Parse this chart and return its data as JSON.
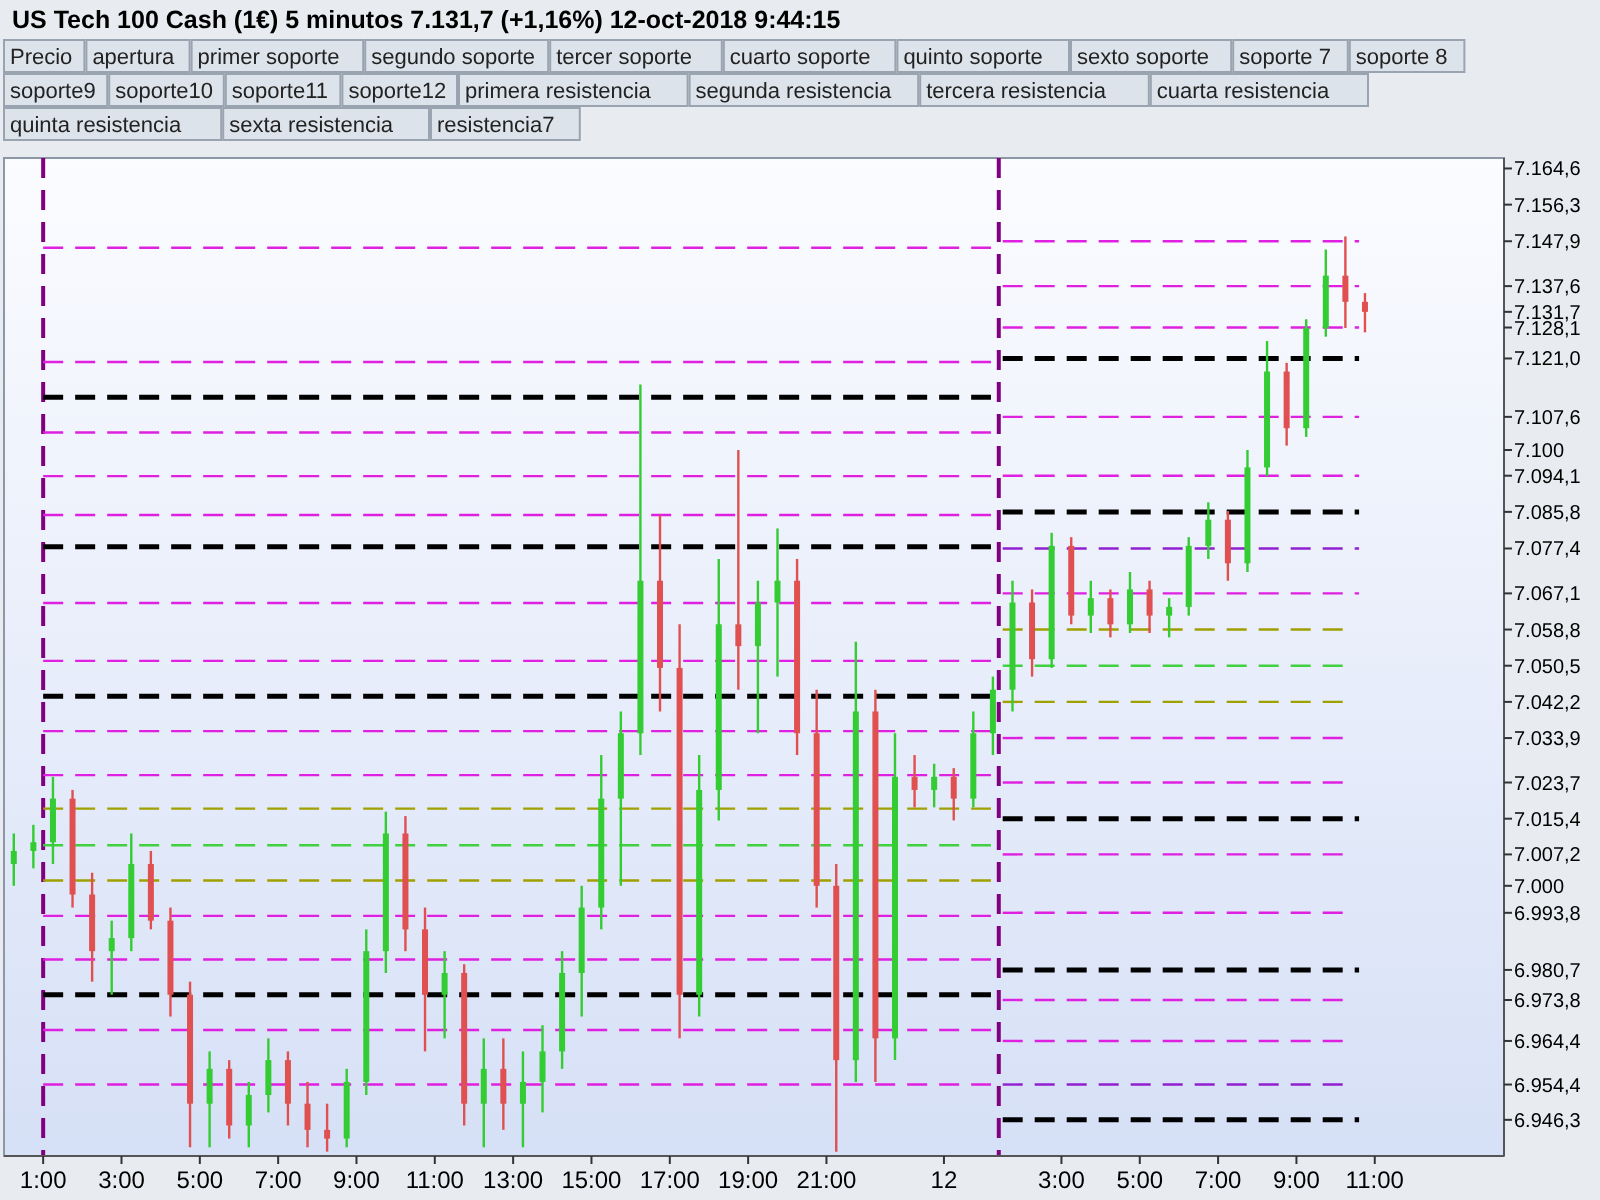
{
  "chart_data": {
    "type": "candlestick",
    "title": "US Tech 100 Cash (1€)   5 minutos   7.131,7 (+1,16%)   12-oct-2018 9:44:15",
    "annotations": [
      "Precio",
      "apertura",
      "primer soporte",
      "segundo soporte",
      "tercer soporte",
      "cuarto soporte",
      "quinto soporte",
      "sexto soporte",
      "soporte 7",
      "soporte 8",
      "soporte9",
      "soporte10",
      "soporte11",
      "soporte12",
      "primera resistencia",
      "segunda resistencia",
      "tercera resistencia",
      "cuarta resistencia",
      "quinta resistencia",
      "sexta resistencia",
      "resistencia7"
    ],
    "x": [
      "2018-10-11T00:15",
      "2018-10-11T00:45",
      "2018-10-11T01:15",
      "2018-10-11T01:45",
      "2018-10-11T02:15",
      "2018-10-11T02:45",
      "2018-10-11T03:15",
      "2018-10-11T03:45",
      "2018-10-11T04:15",
      "2018-10-11T04:45",
      "2018-10-11T05:15",
      "2018-10-11T05:45",
      "2018-10-11T06:15",
      "2018-10-11T06:45",
      "2018-10-11T07:15",
      "2018-10-11T07:45",
      "2018-10-11T08:15",
      "2018-10-11T08:45",
      "2018-10-11T09:15",
      "2018-10-11T09:45",
      "2018-10-11T10:15",
      "2018-10-11T10:45",
      "2018-10-11T11:15",
      "2018-10-11T11:45",
      "2018-10-11T12:15",
      "2018-10-11T12:45",
      "2018-10-11T13:15",
      "2018-10-11T13:45",
      "2018-10-11T14:15",
      "2018-10-11T14:45",
      "2018-10-11T15:15",
      "2018-10-11T15:45",
      "2018-10-11T16:15",
      "2018-10-11T16:45",
      "2018-10-11T17:15",
      "2018-10-11T17:45",
      "2018-10-11T18:15",
      "2018-10-11T18:45",
      "2018-10-11T19:15",
      "2018-10-11T19:45",
      "2018-10-11T20:15",
      "2018-10-11T20:45",
      "2018-10-11T21:15",
      "2018-10-11T21:45",
      "2018-10-11T22:15",
      "2018-10-11T22:45",
      "2018-10-11T23:15",
      "2018-10-11T23:45",
      "2018-10-12T00:15",
      "2018-10-12T00:45",
      "2018-10-12T01:15",
      "2018-10-12T01:45",
      "2018-10-12T02:15",
      "2018-10-12T02:45",
      "2018-10-12T03:15",
      "2018-10-12T03:45",
      "2018-10-12T04:15",
      "2018-10-12T04:45",
      "2018-10-12T05:15",
      "2018-10-12T05:45",
      "2018-10-12T06:15",
      "2018-10-12T06:45",
      "2018-10-12T07:15",
      "2018-10-12T07:45",
      "2018-10-12T08:15",
      "2018-10-12T08:45",
      "2018-10-12T09:15",
      "2018-10-12T09:45",
      "2018-10-12T10:15",
      "2018-10-12T10:45"
    ],
    "ohlc": [
      [
        7005,
        7012,
        7000,
        7008
      ],
      [
        7008,
        7014,
        7004,
        7010
      ],
      [
        7010,
        7025,
        7005,
        7020
      ],
      [
        7020,
        7022,
        6995,
        6998
      ],
      [
        6998,
        7003,
        6978,
        6985
      ],
      [
        6985,
        6992,
        6975,
        6988
      ],
      [
        6988,
        7012,
        6985,
        7005
      ],
      [
        7005,
        7008,
        6990,
        6992
      ],
      [
        6992,
        6995,
        6970,
        6975
      ],
      [
        6975,
        6978,
        6940,
        6950
      ],
      [
        6950,
        6962,
        6940,
        6958
      ],
      [
        6958,
        6960,
        6942,
        6945
      ],
      [
        6945,
        6955,
        6940,
        6952
      ],
      [
        6952,
        6965,
        6948,
        6960
      ],
      [
        6960,
        6962,
        6945,
        6950
      ],
      [
        6950,
        6955,
        6940,
        6944
      ],
      [
        6944,
        6950,
        6939,
        6942
      ],
      [
        6942,
        6958,
        6940,
        6955
      ],
      [
        6955,
        6990,
        6952,
        6985
      ],
      [
        6985,
        7017,
        6980,
        7012
      ],
      [
        7012,
        7016,
        6985,
        6990
      ],
      [
        6990,
        6995,
        6962,
        6975
      ],
      [
        6975,
        6985,
        6965,
        6980
      ],
      [
        6980,
        6982,
        6945,
        6950
      ],
      [
        6950,
        6965,
        6940,
        6958
      ],
      [
        6958,
        6965,
        6944,
        6950
      ],
      [
        6950,
        6962,
        6940,
        6955
      ],
      [
        6955,
        6968,
        6948,
        6962
      ],
      [
        6962,
        6985,
        6958,
        6980
      ],
      [
        6980,
        7000,
        6970,
        6995
      ],
      [
        6995,
        7030,
        6990,
        7020
      ],
      [
        7020,
        7040,
        7000,
        7035
      ],
      [
        7035,
        7115,
        7030,
        7070
      ],
      [
        7070,
        7085,
        7040,
        7050
      ],
      [
        7050,
        7060,
        6965,
        6975
      ],
      [
        6975,
        7030,
        6970,
        7022
      ],
      [
        7022,
        7075,
        7015,
        7060
      ],
      [
        7060,
        7100,
        7045,
        7055
      ],
      [
        7055,
        7070,
        7035,
        7065
      ],
      [
        7065,
        7082,
        7048,
        7070
      ],
      [
        7070,
        7075,
        7030,
        7035
      ],
      [
        7035,
        7045,
        6995,
        7000
      ],
      [
        7000,
        7005,
        6939,
        6960
      ],
      [
        6960,
        7056,
        6955,
        7040
      ],
      [
        7040,
        7045,
        6955,
        6965
      ],
      [
        6965,
        7035,
        6960,
        7025
      ],
      [
        7025,
        7030,
        7018,
        7022
      ],
      [
        7022,
        7028,
        7018,
        7025
      ],
      [
        7025,
        7027,
        7015,
        7020
      ],
      [
        7020,
        7040,
        7018,
        7035
      ],
      [
        7035,
        7048,
        7030,
        7045
      ],
      [
        7045,
        7070,
        7040,
        7065
      ],
      [
        7065,
        7068,
        7048,
        7052
      ],
      [
        7052,
        7081,
        7050,
        7078
      ],
      [
        7078,
        7080,
        7060,
        7062
      ],
      [
        7062,
        7070,
        7058,
        7066
      ],
      [
        7066,
        7068,
        7057,
        7060
      ],
      [
        7060,
        7072,
        7058,
        7068
      ],
      [
        7068,
        7070,
        7058,
        7062
      ],
      [
        7062,
        7066,
        7057,
        7064
      ],
      [
        7064,
        7080,
        7062,
        7078
      ],
      [
        7078,
        7088,
        7075,
        7084
      ],
      [
        7084,
        7086,
        7070,
        7074
      ],
      [
        7074,
        7100,
        7072,
        7096
      ],
      [
        7096,
        7125,
        7094,
        7118
      ],
      [
        7118,
        7120,
        7101,
        7105
      ],
      [
        7105,
        7130,
        7103,
        7128
      ],
      [
        7128,
        7146,
        7126,
        7140
      ],
      [
        7140,
        7149,
        7128,
        7134
      ],
      [
        7134,
        7136,
        7127,
        7131.7
      ]
    ],
    "colors": [
      "#33cc33",
      "#33cc33",
      "#33cc33",
      "#e05050",
      "#e05050",
      "#33cc33",
      "#33cc33",
      "#e05050",
      "#e05050",
      "#e05050",
      "#33cc33",
      "#e05050",
      "#33cc33",
      "#33cc33",
      "#e05050",
      "#e05050",
      "#e05050",
      "#33cc33",
      "#33cc33",
      "#33cc33",
      "#e05050",
      "#e05050",
      "#33cc33",
      "#e05050",
      "#33cc33",
      "#e05050",
      "#33cc33",
      "#33cc33",
      "#33cc33",
      "#33cc33",
      "#33cc33",
      "#33cc33",
      "#33cc33",
      "#e05050",
      "#e05050",
      "#33cc33",
      "#33cc33",
      "#e05050",
      "#33cc33",
      "#33cc33",
      "#e05050",
      "#e05050",
      "#e05050",
      "#33cc33",
      "#e05050",
      "#33cc33",
      "#e05050",
      "#33cc33",
      "#e05050",
      "#33cc33",
      "#33cc33",
      "#33cc33",
      "#e05050",
      "#33cc33",
      "#e05050",
      "#33cc33",
      "#e05050",
      "#33cc33",
      "#e05050",
      "#33cc33",
      "#33cc33",
      "#33cc33",
      "#e05050",
      "#33cc33",
      "#33cc33",
      "#e05050",
      "#33cc33",
      "#33cc33",
      "#e05050",
      "#e05050"
    ],
    "series": [
      {
        "type": "line",
        "color": "#e020e0",
        "x": [
          "2018-10-11T01:00",
          "2018-10-12T01:12"
        ],
        "values": [
          7146.4,
          7146.4
        ]
      },
      {
        "type": "line",
        "color": "#e020e0",
        "x": [
          "2018-10-11T01:00",
          "2018-10-12T01:12"
        ],
        "values": [
          7120.2,
          7120.2
        ]
      },
      {
        "type": "line",
        "color": "#000000",
        "x": [
          "2018-10-11T01:00",
          "2018-10-12T01:12"
        ],
        "values": [
          7112.1,
          7112.1
        ]
      },
      {
        "type": "line",
        "color": "#e020e0",
        "x": [
          "2018-10-11T01:00",
          "2018-10-12T01:12"
        ],
        "values": [
          7104,
          7104
        ]
      },
      {
        "type": "line",
        "color": "#e020e0",
        "x": [
          "2018-10-11T01:00",
          "2018-10-12T01:12"
        ],
        "values": [
          7094,
          7094
        ]
      },
      {
        "type": "line",
        "color": "#e020e0",
        "x": [
          "2018-10-11T01:00",
          "2018-10-12T01:12"
        ],
        "values": [
          7085.1,
          7085.1
        ]
      },
      {
        "type": "line",
        "color": "#000000",
        "x": [
          "2018-10-11T01:00",
          "2018-10-12T01:12"
        ],
        "values": [
          7077.8,
          7077.8
        ]
      },
      {
        "type": "line",
        "color": "#e020e0",
        "x": [
          "2018-10-11T01:00",
          "2018-10-12T01:12"
        ],
        "values": [
          7064.9,
          7064.9
        ]
      },
      {
        "type": "line",
        "color": "#e020e0",
        "x": [
          "2018-10-11T01:00",
          "2018-10-12T01:12"
        ],
        "values": [
          7051.6,
          7051.6
        ]
      },
      {
        "type": "line",
        "color": "#000000",
        "x": [
          "2018-10-11T01:00",
          "2018-10-12T01:12"
        ],
        "values": [
          7043.5,
          7043.5
        ]
      },
      {
        "type": "line",
        "color": "#e020e0",
        "x": [
          "2018-10-11T01:00",
          "2018-10-12T01:12"
        ],
        "values": [
          7035.5,
          7035.5
        ]
      },
      {
        "type": "line",
        "color": "#e020e0",
        "x": [
          "2018-10-11T01:00",
          "2018-10-12T01:12"
        ],
        "values": [
          7025.4,
          7025.4
        ]
      },
      {
        "type": "line",
        "color": "#a0a000",
        "x": [
          "2018-10-11T01:00",
          "2018-10-12T01:12"
        ],
        "values": [
          7017.7,
          7017.7
        ]
      },
      {
        "type": "line",
        "color": "#40d040",
        "x": [
          "2018-10-11T01:00",
          "2018-10-12T01:12"
        ],
        "values": [
          7009.3,
          7009.3
        ]
      },
      {
        "type": "line",
        "color": "#a0a000",
        "x": [
          "2018-10-11T01:00",
          "2018-10-12T01:12"
        ],
        "values": [
          7001.2,
          7001.2
        ]
      },
      {
        "type": "line",
        "color": "#e020e0",
        "x": [
          "2018-10-11T01:00",
          "2018-10-12T01:12"
        ],
        "values": [
          6993.1,
          6993.1
        ]
      },
      {
        "type": "line",
        "color": "#e020e0",
        "x": [
          "2018-10-11T01:00",
          "2018-10-12T01:12"
        ],
        "values": [
          6983.1,
          6983.1
        ]
      },
      {
        "type": "line",
        "color": "#000000",
        "x": [
          "2018-10-11T01:00",
          "2018-10-12T01:12"
        ],
        "values": [
          6975,
          6975
        ]
      },
      {
        "type": "line",
        "color": "#e020e0",
        "x": [
          "2018-10-11T01:00",
          "2018-10-12T01:12"
        ],
        "values": [
          6966.9,
          6966.9
        ]
      },
      {
        "type": "line",
        "color": "#e020e0",
        "x": [
          "2018-10-11T01:00",
          "2018-10-12T01:12"
        ],
        "values": [
          6954.4,
          6954.4
        ]
      },
      {
        "type": "line",
        "color": "#e020e0",
        "x": [
          "2018-10-12T01:30",
          "2018-10-12T10:36"
        ],
        "values": [
          7147.9,
          7147.9
        ]
      },
      {
        "type": "line",
        "color": "#e020e0",
        "x": [
          "2018-10-12T01:30",
          "2018-10-12T10:36"
        ],
        "values": [
          7137.6,
          7137.6
        ]
      },
      {
        "type": "line",
        "color": "#e020e0",
        "x": [
          "2018-10-12T01:30",
          "2018-10-12T10:36"
        ],
        "values": [
          7128.1,
          7128.1
        ]
      },
      {
        "type": "line",
        "color": "#000000",
        "x": [
          "2018-10-12T01:30",
          "2018-10-12T10:36"
        ],
        "values": [
          7121,
          7121
        ]
      },
      {
        "type": "line",
        "color": "#e020e0",
        "x": [
          "2018-10-12T01:30",
          "2018-10-12T10:36"
        ],
        "values": [
          7107.6,
          7107.6
        ]
      },
      {
        "type": "line",
        "color": "#e020e0",
        "x": [
          "2018-10-12T01:30",
          "2018-10-12T10:36"
        ],
        "values": [
          7094.1,
          7094.1
        ]
      },
      {
        "type": "line",
        "color": "#000000",
        "x": [
          "2018-10-12T01:30",
          "2018-10-12T10:36"
        ],
        "values": [
          7085.8,
          7085.8
        ]
      },
      {
        "type": "line",
        "color": "#9020d0",
        "x": [
          "2018-10-12T01:30",
          "2018-10-12T10:36"
        ],
        "values": [
          7077.4,
          7077.4
        ]
      },
      {
        "type": "line",
        "color": "#e020e0",
        "x": [
          "2018-10-12T01:30",
          "2018-10-12T10:36"
        ],
        "values": [
          7067.1,
          7067.1
        ]
      },
      {
        "type": "line",
        "color": "#a0a000",
        "x": [
          "2018-10-12T01:30",
          "2018-10-12T10:12"
        ],
        "values": [
          7058.8,
          7058.8
        ]
      },
      {
        "type": "line",
        "color": "#40d040",
        "x": [
          "2018-10-12T01:30",
          "2018-10-12T10:12"
        ],
        "values": [
          7050.5,
          7050.5
        ]
      },
      {
        "type": "line",
        "color": "#a0a000",
        "x": [
          "2018-10-12T01:30",
          "2018-10-12T10:12"
        ],
        "values": [
          7042.2,
          7042.2
        ]
      },
      {
        "type": "line",
        "color": "#e020e0",
        "x": [
          "2018-10-12T01:30",
          "2018-10-12T10:12"
        ],
        "values": [
          7033.9,
          7033.9
        ]
      },
      {
        "type": "line",
        "color": "#e020e0",
        "x": [
          "2018-10-12T01:30",
          "2018-10-12T10:12"
        ],
        "values": [
          7023.7,
          7023.7
        ]
      },
      {
        "type": "line",
        "color": "#000000",
        "x": [
          "2018-10-12T01:30",
          "2018-10-12T10:36"
        ],
        "values": [
          7015.4,
          7015.4
        ]
      },
      {
        "type": "line",
        "color": "#e020e0",
        "x": [
          "2018-10-12T01:30",
          "2018-10-12T10:12"
        ],
        "values": [
          7007.2,
          7007.2
        ]
      },
      {
        "type": "line",
        "color": "#e020e0",
        "x": [
          "2018-10-12T01:30",
          "2018-10-12T10:12"
        ],
        "values": [
          6993.8,
          6993.8
        ]
      },
      {
        "type": "line",
        "color": "#000000",
        "x": [
          "2018-10-12T01:30",
          "2018-10-12T10:36"
        ],
        "values": [
          6980.7,
          6980.7
        ]
      },
      {
        "type": "line",
        "color": "#e020e0",
        "x": [
          "2018-10-12T01:30",
          "2018-10-12T10:12"
        ],
        "values": [
          6973.8,
          6973.8
        ]
      },
      {
        "type": "line",
        "color": "#e020e0",
        "x": [
          "2018-10-12T01:30",
          "2018-10-12T10:12"
        ],
        "values": [
          6964.4,
          6964.4
        ]
      },
      {
        "type": "line",
        "color": "#9020d0",
        "x": [
          "2018-10-12T01:30",
          "2018-10-12T10:12"
        ],
        "values": [
          6954.4,
          6954.4
        ]
      },
      {
        "type": "line",
        "color": "#000000",
        "x": [
          "2018-10-12T01:30",
          "2018-10-12T10:36"
        ],
        "values": [
          6946.3,
          6946.3
        ]
      }
    ],
    "line_style": "dashed",
    "ref_lines": [
      {
        "axis": "x",
        "value": "2018-10-11T01:00",
        "color": "#800080",
        "line_style": "dashed"
      },
      {
        "axis": "x",
        "value": "2018-10-12T01:24",
        "color": "#800080",
        "line_style": "dashed"
      }
    ],
    "xlim": [
      "2018-10-11T00:00",
      "2018-10-12T14:18"
    ],
    "xticks": [
      {
        "value": "2018-10-11T01:00",
        "label": "1:00"
      },
      {
        "value": "2018-10-11T03:00",
        "label": "3:00"
      },
      {
        "value": "2018-10-11T05:00",
        "label": "5:00"
      },
      {
        "value": "2018-10-11T07:00",
        "label": "7:00"
      },
      {
        "value": "2018-10-11T09:00",
        "label": "9:00"
      },
      {
        "value": "2018-10-11T11:00",
        "label": "11:00"
      },
      {
        "value": "2018-10-11T13:00",
        "label": "13:00"
      },
      {
        "value": "2018-10-11T15:00",
        "label": "15:00"
      },
      {
        "value": "2018-10-11T17:00",
        "label": "17:00"
      },
      {
        "value": "2018-10-11T19:00",
        "label": "19:00"
      },
      {
        "value": "2018-10-11T21:00",
        "label": "21:00"
      },
      {
        "value": "2018-10-12T00:00",
        "label": "12"
      },
      {
        "value": "2018-10-12T03:00",
        "label": "3:00"
      },
      {
        "value": "2018-10-12T05:00",
        "label": "5:00"
      },
      {
        "value": "2018-10-12T07:00",
        "label": "7:00"
      },
      {
        "value": "2018-10-12T09:00",
        "label": "9:00"
      },
      {
        "value": "2018-10-12T11:00",
        "label": "11:00"
      }
    ],
    "ylim": [
      6938,
      7167
    ],
    "yticks": [
      {
        "value": 7164.6,
        "label": "7.164,6"
      },
      {
        "value": 7156.3,
        "label": "7.156,3"
      },
      {
        "value": 7147.9,
        "label": "7.147,9"
      },
      {
        "value": 7137.6,
        "label": "7.137,6"
      },
      {
        "value": 7131.7,
        "label": "7.131,7"
      },
      {
        "value": 7128.1,
        "label": "7.128,1"
      },
      {
        "value": 7121,
        "label": "7.121,0"
      },
      {
        "value": 7107.6,
        "label": "7.107,6"
      },
      {
        "value": 7100,
        "label": "7.100"
      },
      {
        "value": 7094.1,
        "label": "7.094,1"
      },
      {
        "value": 7085.8,
        "label": "7.085,8"
      },
      {
        "value": 7077.4,
        "label": "7.077,4"
      },
      {
        "value": 7067.1,
        "label": "7.067,1"
      },
      {
        "value": 7058.8,
        "label": "7.058,8"
      },
      {
        "value": 7050.5,
        "label": "7.050,5"
      },
      {
        "value": 7042.2,
        "label": "7.042,2"
      },
      {
        "value": 7033.9,
        "label": "7.033,9"
      },
      {
        "value": 7023.7,
        "label": "7.023,7"
      },
      {
        "value": 7015.4,
        "label": "7.015,4"
      },
      {
        "value": 7007.2,
        "label": "7.007,2"
      },
      {
        "value": 7000,
        "label": "7.000"
      },
      {
        "value": 6993.8,
        "label": "6.993,8"
      },
      {
        "value": 6980.7,
        "label": "6.980,7"
      },
      {
        "value": 6973.8,
        "label": "6.973,8"
      },
      {
        "value": 6964.4,
        "label": "6.964,4"
      },
      {
        "value": 6954.4,
        "label": "6.954,4"
      },
      {
        "value": 6946.3,
        "label": "6.946,3"
      }
    ]
  }
}
